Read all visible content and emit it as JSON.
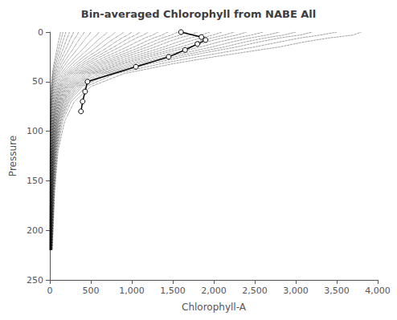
{
  "chart_data": {
    "type": "line",
    "title": "Bin-averaged Chlorophyll from NABE All",
    "xlabel": "Chlorophyll-A",
    "ylabel": "Pressure",
    "xlim": [
      0,
      4000
    ],
    "ylim": [
      250,
      0
    ],
    "xticks": [
      0,
      500,
      1000,
      1500,
      2000,
      2500,
      3000,
      3500,
      4000
    ],
    "yticks": [
      0,
      50,
      100,
      150,
      200,
      250
    ],
    "grid": false,
    "series": [
      {
        "color": "#000000",
        "line_style": "dotted",
        "marker": "none",
        "x": [
          3800,
          3700,
          3400,
          3100,
          2800,
          2400,
          2000,
          1500,
          900,
          500,
          300,
          180,
          100,
          60,
          30
        ],
        "y": [
          0,
          3,
          6,
          10,
          15,
          20,
          25,
          32,
          42,
          55,
          70,
          90,
          120,
          160,
          220
        ]
      },
      {
        "color": "#000000",
        "line_style": "dotted",
        "marker": "none",
        "x": [
          3500,
          3300,
          3050,
          2800,
          2500,
          2150,
          1800,
          1350,
          800,
          440,
          260,
          155,
          90,
          55,
          28
        ],
        "y": [
          0,
          3,
          6,
          10,
          15,
          20,
          25,
          32,
          42,
          55,
          70,
          90,
          120,
          160,
          220
        ]
      },
      {
        "color": "#000000",
        "line_style": "dotted",
        "marker": "none",
        "x": [
          3200,
          3050,
          2800,
          2550,
          2280,
          1950,
          1630,
          1220,
          720,
          395,
          235,
          140,
          82,
          50,
          25
        ],
        "y": [
          0,
          3,
          6,
          10,
          15,
          20,
          25,
          32,
          42,
          55,
          70,
          90,
          120,
          160,
          220
        ]
      },
      {
        "color": "#000000",
        "line_style": "dotted",
        "marker": "none",
        "x": [
          3000,
          2850,
          2620,
          2380,
          2130,
          1820,
          1520,
          1140,
          670,
          368,
          218,
          130,
          76,
          46,
          23
        ],
        "y": [
          0,
          3,
          6,
          10,
          15,
          20,
          25,
          32,
          42,
          55,
          70,
          90,
          120,
          160,
          220
        ]
      },
      {
        "color": "#000000",
        "line_style": "dotted",
        "marker": "none",
        "x": [
          2800,
          2650,
          2440,
          2220,
          1980,
          1700,
          1420,
          1060,
          625,
          342,
          203,
          121,
          71,
          43,
          21
        ],
        "y": [
          0,
          3,
          6,
          10,
          15,
          20,
          25,
          32,
          42,
          55,
          70,
          90,
          120,
          160,
          220
        ]
      },
      {
        "color": "#000000",
        "line_style": "dotted",
        "marker": "none",
        "x": [
          2600,
          2460,
          2270,
          2060,
          1840,
          1580,
          1320,
          985,
          581,
          318,
          189,
          112,
          66,
          40,
          20
        ],
        "y": [
          0,
          3,
          6,
          10,
          15,
          20,
          25,
          32,
          42,
          55,
          70,
          90,
          120,
          160,
          220
        ]
      },
      {
        "color": "#000000",
        "line_style": "dotted",
        "marker": "none",
        "x": [
          2400,
          2280,
          2100,
          1910,
          1700,
          1460,
          1220,
          910,
          536,
          294,
          174,
          104,
          61,
          37,
          18
        ],
        "y": [
          0,
          3,
          6,
          10,
          15,
          20,
          25,
          32,
          42,
          55,
          70,
          90,
          120,
          160,
          220
        ]
      },
      {
        "color": "#000000",
        "line_style": "dotted",
        "marker": "none",
        "x": [
          2250,
          2130,
          1970,
          1790,
          1600,
          1374,
          1148,
          857,
          505,
          276,
          164,
          98,
          57,
          35,
          17
        ],
        "y": [
          0,
          3,
          6,
          10,
          15,
          20,
          25,
          32,
          42,
          55,
          70,
          90,
          120,
          160,
          220
        ]
      },
      {
        "color": "#000000",
        "line_style": "dotted",
        "marker": "none",
        "x": [
          2100,
          1990,
          1840,
          1670,
          1490,
          1285,
          1073,
          800,
          471,
          258,
          153,
          91,
          53,
          32,
          16
        ],
        "y": [
          0,
          3,
          6,
          10,
          15,
          20,
          25,
          32,
          42,
          55,
          70,
          90,
          120,
          160,
          220
        ]
      },
      {
        "color": "#000000",
        "line_style": "dotted",
        "marker": "none",
        "x": [
          1950,
          1850,
          1710,
          1560,
          1390,
          1196,
          999,
          744,
          438,
          240,
          142,
          85,
          50,
          30,
          15
        ],
        "y": [
          0,
          3,
          6,
          10,
          15,
          20,
          25,
          32,
          42,
          55,
          70,
          90,
          120,
          160,
          220
        ]
      },
      {
        "color": "#000000",
        "line_style": "dotted",
        "marker": "none",
        "x": [
          1800,
          1710,
          1580,
          1440,
          1285,
          1106,
          924,
          688,
          405,
          222,
          132,
          79,
          46,
          28,
          14
        ],
        "y": [
          0,
          3,
          6,
          10,
          15,
          20,
          25,
          32,
          42,
          55,
          70,
          90,
          120,
          160,
          220
        ]
      },
      {
        "color": "#000000",
        "line_style": "dotted",
        "marker": "none",
        "x": [
          1680,
          1590,
          1470,
          1340,
          1195,
          1028,
          860,
          640,
          376,
          206,
          122,
          73,
          43,
          26,
          13
        ],
        "y": [
          0,
          3,
          6,
          10,
          15,
          20,
          25,
          32,
          42,
          55,
          70,
          90,
          120,
          160,
          220
        ]
      },
      {
        "color": "#000000",
        "line_style": "dotted",
        "marker": "none",
        "x": [
          1560,
          1480,
          1370,
          1250,
          1110,
          958,
          800,
          595,
          350,
          192,
          114,
          68,
          40,
          24,
          12
        ],
        "y": [
          0,
          3,
          6,
          10,
          15,
          20,
          25,
          32,
          42,
          55,
          70,
          90,
          120,
          160,
          220
        ]
      },
      {
        "color": "#000000",
        "line_style": "dotted",
        "marker": "none",
        "x": [
          1440,
          1370,
          1265,
          1155,
          1028,
          884,
          739,
          550,
          323,
          177,
          105,
          63,
          37,
          22,
          11
        ],
        "y": [
          0,
          3,
          6,
          10,
          15,
          20,
          25,
          32,
          42,
          55,
          70,
          90,
          120,
          160,
          220
        ]
      },
      {
        "color": "#000000",
        "line_style": "dotted",
        "marker": "none",
        "x": [
          1320,
          1255,
          1160,
          1058,
          941,
          811,
          677,
          504,
          297,
          162,
          96,
          57,
          34,
          20,
          10
        ],
        "y": [
          0,
          3,
          6,
          10,
          15,
          20,
          25,
          32,
          42,
          55,
          70,
          90,
          120,
          160,
          220
        ]
      },
      {
        "color": "#000000",
        "line_style": "dotted",
        "marker": "none",
        "x": [
          1200,
          1140,
          1055,
          963,
          855,
          737,
          616,
          458,
          269,
          148,
          88,
          52,
          31,
          19,
          9
        ],
        "y": [
          0,
          3,
          6,
          10,
          15,
          20,
          25,
          32,
          42,
          55,
          70,
          90,
          120,
          160,
          220
        ]
      },
      {
        "color": "#000000",
        "line_style": "dotted",
        "marker": "none",
        "x": [
          1100,
          1045,
          967,
          882,
          783,
          675,
          564,
          420,
          247,
          135,
          80,
          48,
          28,
          17,
          8
        ],
        "y": [
          0,
          3,
          6,
          10,
          15,
          20,
          25,
          32,
          42,
          55,
          70,
          90,
          120,
          160,
          220
        ]
      },
      {
        "color": "#000000",
        "line_style": "dotted",
        "marker": "none",
        "x": [
          1000,
          950,
          879,
          802,
          712,
          614,
          513,
          382,
          224,
          123,
          73,
          44,
          26,
          15,
          8
        ],
        "y": [
          0,
          3,
          6,
          10,
          15,
          20,
          25,
          32,
          42,
          55,
          70,
          90,
          120,
          160,
          220
        ]
      },
      {
        "color": "#000000",
        "line_style": "dotted",
        "marker": "none",
        "x": [
          900,
          856,
          792,
          722,
          641,
          553,
          462,
          344,
          202,
          111,
          66,
          39,
          23,
          14,
          7
        ],
        "y": [
          0,
          3,
          6,
          10,
          15,
          20,
          25,
          32,
          42,
          55,
          70,
          90,
          120,
          160,
          220
        ]
      },
      {
        "color": "#000000",
        "line_style": "dotted",
        "marker": "none",
        "x": [
          800,
          761,
          704,
          642,
          570,
          492,
          411,
          306,
          180,
          99,
          59,
          35,
          21,
          12,
          6
        ],
        "y": [
          0,
          3,
          6,
          10,
          15,
          20,
          25,
          32,
          42,
          55,
          70,
          90,
          120,
          160,
          220
        ]
      },
      {
        "color": "#000000",
        "line_style": "dotted",
        "marker": "none",
        "x": [
          700,
          666,
          616,
          562,
          499,
          430,
          360,
          268,
          157,
          86,
          51,
          31,
          18,
          11,
          5
        ],
        "y": [
          0,
          3,
          6,
          10,
          15,
          20,
          25,
          32,
          42,
          55,
          70,
          90,
          120,
          160,
          220
        ]
      },
      {
        "color": "#000000",
        "line_style": "dotted",
        "marker": "none",
        "x": [
          600,
          571,
          528,
          482,
          428,
          369,
          309,
          230,
          135,
          74,
          44,
          26,
          15,
          9,
          5
        ],
        "y": [
          0,
          3,
          6,
          10,
          15,
          20,
          25,
          32,
          42,
          55,
          70,
          90,
          120,
          160,
          220
        ]
      },
      {
        "color": "#000000",
        "line_style": "dotted",
        "marker": "none",
        "x": [
          500,
          476,
          440,
          402,
          357,
          308,
          257,
          191,
          112,
          62,
          37,
          22,
          13,
          8,
          4
        ],
        "y": [
          0,
          3,
          6,
          10,
          15,
          20,
          25,
          32,
          42,
          55,
          70,
          90,
          120,
          160,
          220
        ]
      },
      {
        "color": "#000000",
        "line_style": "dotted",
        "marker": "none",
        "x": [
          420,
          400,
          370,
          338,
          300,
          259,
          216,
          161,
          94,
          52,
          31,
          18,
          11,
          7,
          3
        ],
        "y": [
          0,
          3,
          6,
          10,
          15,
          20,
          25,
          32,
          42,
          55,
          70,
          90,
          120,
          160,
          220
        ]
      },
      {
        "color": "#000000",
        "line_style": "dotted",
        "marker": "none",
        "x": [
          350,
          333,
          308,
          281,
          250,
          215,
          180,
          134,
          78,
          43,
          26,
          15,
          9,
          5,
          3
        ],
        "y": [
          0,
          3,
          6,
          10,
          15,
          20,
          25,
          32,
          42,
          55,
          70,
          90,
          120,
          160,
          220
        ]
      },
      {
        "color": "#000000",
        "line_style": "dotted",
        "marker": "none",
        "x": [
          290,
          276,
          255,
          233,
          207,
          178,
          149,
          111,
          65,
          36,
          21,
          13,
          8,
          5,
          2
        ],
        "y": [
          0,
          3,
          6,
          10,
          15,
          20,
          25,
          32,
          42,
          55,
          70,
          90,
          120,
          160,
          220
        ]
      },
      {
        "color": "#000000",
        "line_style": "dotted",
        "marker": "none",
        "x": [
          240,
          228,
          211,
          193,
          171,
          148,
          123,
          92,
          54,
          30,
          18,
          11,
          6,
          4,
          2
        ],
        "y": [
          0,
          3,
          6,
          10,
          15,
          20,
          25,
          32,
          42,
          55,
          70,
          90,
          120,
          160,
          220
        ]
      },
      {
        "color": "#000000",
        "line_style": "dotted",
        "marker": "none",
        "x": [
          195,
          185,
          172,
          156,
          139,
          120,
          100,
          75,
          44,
          24,
          14,
          9,
          5,
          3,
          1
        ],
        "y": [
          0,
          3,
          6,
          10,
          15,
          20,
          25,
          32,
          42,
          55,
          70,
          90,
          120,
          160,
          220
        ]
      },
      {
        "color": "#000000",
        "line_style": "dotted",
        "marker": "none",
        "x": [
          160,
          152,
          141,
          128,
          114,
          98,
          82,
          61,
          36,
          20,
          12,
          7,
          4,
          3,
          1
        ],
        "y": [
          0,
          3,
          6,
          10,
          15,
          20,
          25,
          32,
          42,
          55,
          70,
          90,
          120,
          160,
          220
        ]
      },
      {
        "color": "#000000",
        "line_style": "dotted",
        "marker": "none",
        "x": [
          130,
          124,
          115,
          104,
          93,
          80,
          67,
          50,
          29,
          16,
          10,
          6,
          3,
          2,
          1
        ],
        "y": [
          0,
          3,
          6,
          10,
          15,
          20,
          25,
          32,
          42,
          55,
          70,
          90,
          120,
          160,
          220
        ]
      },
      {
        "color": "#000000",
        "line_style": "solid",
        "marker": "circle",
        "x": [
          1600,
          1850,
          1900,
          1800,
          1650,
          1450,
          1050,
          460,
          430,
          400,
          380
        ],
        "y": [
          0,
          5,
          8,
          12,
          18,
          25,
          35,
          50,
          60,
          70,
          80
        ]
      }
    ]
  }
}
